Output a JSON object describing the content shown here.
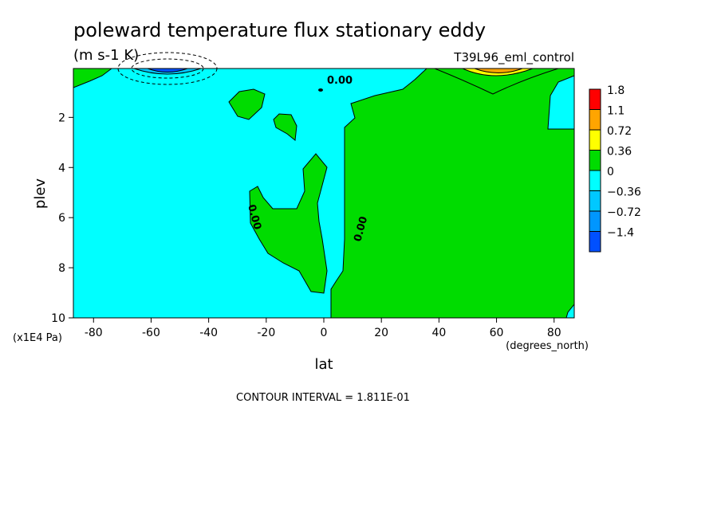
{
  "chart_data": {
    "type": "heatmap",
    "title": "poleward temperature flux stationary eddy",
    "subtitle": "(m s-1 K)",
    "run_label": "T39L96_eml_control",
    "xlabel": "lat",
    "x_units": "(degrees_north)",
    "ylabel": "plev",
    "y_units": "(x1E4 Pa)",
    "xlim": [
      -87,
      87
    ],
    "ylim": [
      10,
      0.05
    ],
    "y_axis_inverted": true,
    "x_ticks": [
      "-80",
      "-60",
      "-40",
      "-20",
      "0",
      "20",
      "40",
      "60",
      "80"
    ],
    "y_ticks": [
      "2",
      "4",
      "6",
      "8",
      "10"
    ],
    "contour_interval_text": "CONTOUR INTERVAL = 1.811E-01",
    "contour_labels": [
      "0.00",
      "0.00",
      "0.00"
    ],
    "legend": {
      "placement": "right",
      "levels": [
        "1.8",
        "1.1",
        "0.72",
        "0.36",
        "0",
        "−0.36",
        "−0.72",
        "−1.4"
      ],
      "colors": [
        "#ff0000",
        "#ffa500",
        "#ffff00",
        "#00dc00",
        "#00ffff",
        "#00c8ff",
        "#0096ff",
        "#0050ff"
      ]
    },
    "regions": [
      {
        "sign": "negative",
        "color": "#00ffff",
        "lat": [
          -87,
          5
        ],
        "plev": [
          0.05,
          10
        ]
      },
      {
        "sign": "positive",
        "color": "#00dc00",
        "lat": [
          5,
          87
        ],
        "plev": [
          0.05,
          10
        ]
      }
    ],
    "extrema": [
      {
        "sign": "negative",
        "lat": -58,
        "plev": 0.2,
        "color": "#0050ff"
      },
      {
        "sign": "positive",
        "lat": 62,
        "plev": 0.15,
        "color": "#ff0000"
      }
    ]
  }
}
